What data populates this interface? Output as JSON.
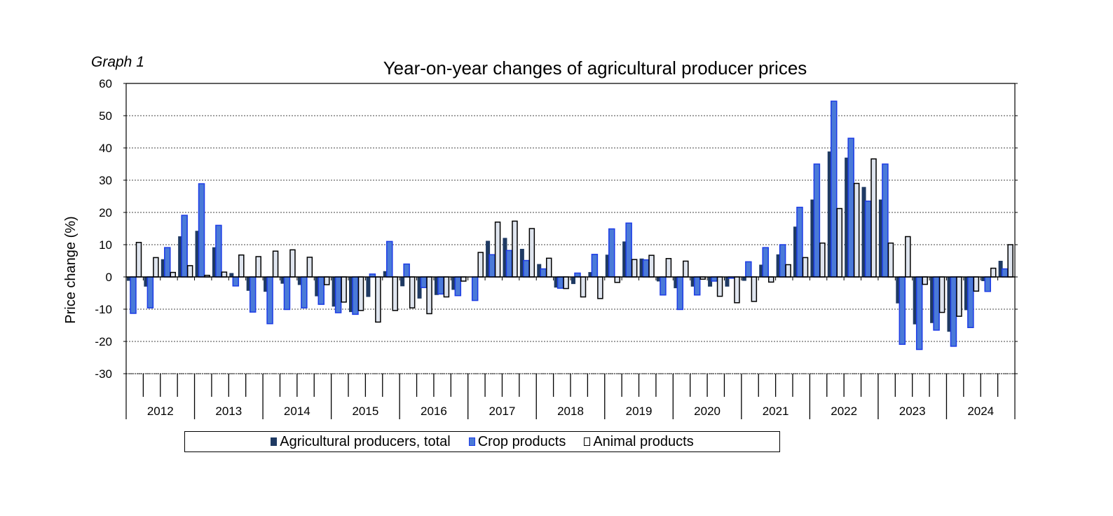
{
  "graph_label": "Graph 1",
  "chart_data": {
    "type": "bar",
    "title": "Year-on-year changes of agricultural producer prices",
    "xlabel": "",
    "ylabel": "Price change (%)",
    "ylim": [
      -30,
      60
    ],
    "yticks": [
      "60",
      "50",
      "40",
      "30",
      "20",
      "10",
      "0",
      "-10",
      "-20",
      "-30"
    ],
    "grid": true,
    "legend_position": "bottom",
    "years": [
      "2012",
      "2013",
      "2014",
      "2015",
      "2016",
      "2017",
      "2018",
      "2019",
      "2020",
      "2021",
      "2022",
      "2023",
      "2024"
    ],
    "periods_per_year": 4,
    "colors": {
      "total": "#1f3a63",
      "crop": "#4a7ad8",
      "crop_border": "#1d3ce6",
      "animal": "#dfe5ef",
      "animal_border": "#000000"
    },
    "series": [
      {
        "name": "Agricultural producers, total",
        "key": "total",
        "values": [
          -1.2,
          -3,
          5.5,
          12.6,
          14.3,
          9.2,
          1.2,
          -4.3,
          -4.6,
          -2.1,
          -2.5,
          -6,
          -9.2,
          -10.9,
          -6.2,
          1.8,
          -2.9,
          -6.7,
          -5.6,
          -4,
          0,
          11.2,
          12.1,
          8.7,
          4,
          -3.3,
          -2.2,
          1.5,
          6.9,
          11,
          5.7,
          -1.4,
          -3.5,
          -3,
          -3,
          -3,
          -1.2,
          3.8,
          7,
          15.6,
          24,
          38.9,
          37,
          27.9,
          24,
          -8.2,
          -14.7,
          -14.3,
          -17,
          -10.3,
          -1.3,
          5
        ]
      },
      {
        "name": "Crop products",
        "key": "crop",
        "values": [
          -11.3,
          -9.6,
          9.1,
          19.1,
          28.9,
          16,
          -2.8,
          -10.9,
          -14.5,
          -10.1,
          -9.6,
          -8.5,
          -11.1,
          -11.6,
          0.9,
          11,
          4,
          -3.3,
          -5.3,
          -5.8,
          -7.3,
          6.9,
          8.2,
          5.1,
          2.5,
          -3.5,
          1.2,
          7,
          14.9,
          16.7,
          5.3,
          -5.6,
          -10.1,
          -5.6,
          -1.3,
          -0.4,
          4.7,
          9.1,
          10,
          21.6,
          35,
          54.5,
          43,
          23.5,
          35,
          -20.9,
          -22.5,
          -16.5,
          -21.5,
          -15.7,
          -4.5,
          2.5
        ]
      },
      {
        "name": "Animal products",
        "key": "animal",
        "values": [
          10.7,
          6,
          1.4,
          3.5,
          0.5,
          1.5,
          6.8,
          6.3,
          8,
          8.4,
          6.1,
          -2.4,
          -7.8,
          -10.4,
          -14,
          -10.4,
          -9.6,
          -11.4,
          -6.2,
          -1.3,
          7.6,
          17,
          17.3,
          15,
          5.8,
          -3.6,
          -6.2,
          -6.7,
          -1.7,
          5.4,
          6.7,
          5.7,
          4.9,
          -0.7,
          -6,
          -8,
          -7.6,
          -1.6,
          3.8,
          6,
          10.5,
          21.2,
          29,
          36.6,
          10.5,
          12.5,
          -2.3,
          -11,
          -12.2,
          -4.4,
          2.7,
          10
        ]
      }
    ]
  }
}
